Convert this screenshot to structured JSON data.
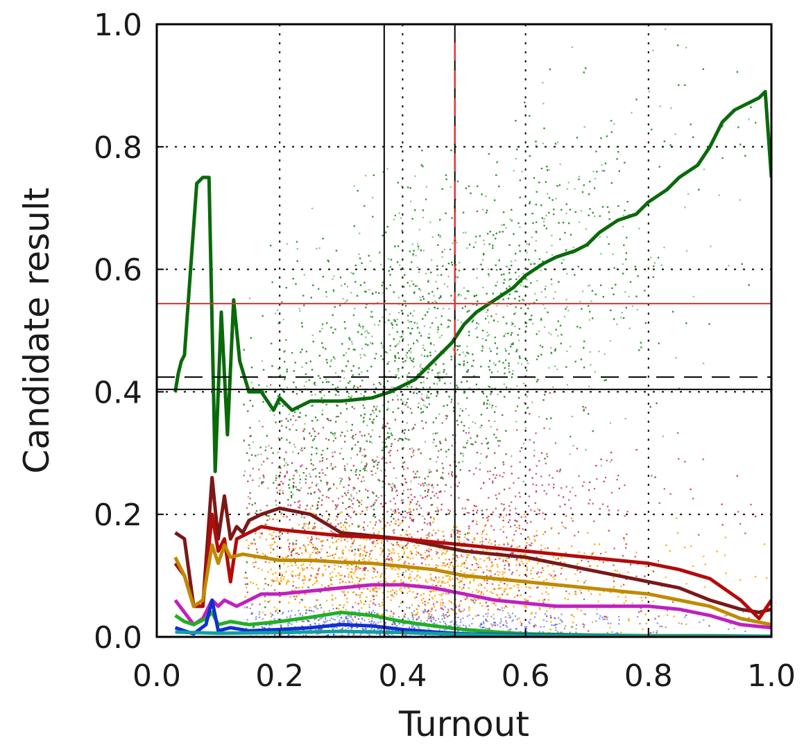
{
  "chart_data": {
    "type": "scatter",
    "xlabel": "Turnout",
    "ylabel": "Candidate result",
    "xlim": [
      0.0,
      1.0
    ],
    "ylim": [
      0.0,
      1.0
    ],
    "xticks": [
      "0.0",
      "0.2",
      "0.4",
      "0.6",
      "0.8",
      "1.0"
    ],
    "yticks": [
      "0.0",
      "0.2",
      "0.4",
      "0.6",
      "0.8",
      "1.0"
    ],
    "grid": true,
    "legend": "none",
    "reference_lines": [
      {
        "orientation": "vertical",
        "value": 0.37,
        "color": "#000000",
        "style": "solid"
      },
      {
        "orientation": "vertical",
        "value": 0.485,
        "color": "#000000",
        "style": "solid"
      },
      {
        "orientation": "vertical",
        "value": 0.485,
        "color": "#ff2020",
        "style": "dashed",
        "from": 0.46,
        "to": 0.97
      },
      {
        "orientation": "horizontal",
        "value": 0.544,
        "color": "#e03030",
        "style": "solid"
      },
      {
        "orientation": "horizontal",
        "value": 0.404,
        "color": "#000000",
        "style": "solid"
      },
      {
        "orientation": "horizontal",
        "value": 0.424,
        "color": "#000000",
        "style": "dashed"
      }
    ],
    "scatter_clouds": [
      {
        "color": "#2a8a2a",
        "points": 5200,
        "spread": "upper",
        "x_center": 0.42,
        "y_intercept": 0.32,
        "y_slope": 0.6,
        "y_noise": 0.14
      },
      {
        "color": "#c0304a",
        "points": 2600,
        "spread": "middle",
        "x_center": 0.42,
        "y_intercept": 0.2,
        "y_slope": -0.05,
        "y_noise": 0.09
      },
      {
        "color": "#ffa500",
        "points": 3200,
        "spread": "lower",
        "x_center": 0.4,
        "y_intercept": 0.12,
        "y_slope": -0.05,
        "y_noise": 0.045
      },
      {
        "color": "#2040e0",
        "points": 900,
        "spread": "bottom",
        "x_center": 0.35,
        "y_intercept": 0.02,
        "y_slope": -0.01,
        "y_noise": 0.015
      }
    ],
    "series": [
      {
        "color": "#0a6a0a",
        "x": [
          0.03,
          0.035,
          0.04,
          0.045,
          0.065,
          0.075,
          0.085,
          0.095,
          0.105,
          0.115,
          0.125,
          0.135,
          0.15,
          0.17,
          0.19,
          0.2,
          0.22,
          0.25,
          0.3,
          0.35,
          0.38,
          0.42,
          0.45,
          0.48,
          0.5,
          0.52,
          0.55,
          0.58,
          0.6,
          0.63,
          0.65,
          0.68,
          0.7,
          0.72,
          0.75,
          0.78,
          0.8,
          0.83,
          0.85,
          0.88,
          0.9,
          0.92,
          0.94,
          0.96,
          0.98,
          0.99,
          1.0
        ],
        "y": [
          0.4,
          0.43,
          0.45,
          0.46,
          0.74,
          0.75,
          0.75,
          0.27,
          0.53,
          0.33,
          0.55,
          0.45,
          0.4,
          0.4,
          0.37,
          0.39,
          0.37,
          0.385,
          0.385,
          0.39,
          0.4,
          0.42,
          0.45,
          0.48,
          0.51,
          0.53,
          0.55,
          0.57,
          0.59,
          0.61,
          0.62,
          0.63,
          0.64,
          0.66,
          0.68,
          0.69,
          0.71,
          0.73,
          0.75,
          0.77,
          0.8,
          0.84,
          0.86,
          0.87,
          0.88,
          0.89,
          0.75
        ]
      },
      {
        "color": "#7a1818",
        "x": [
          0.03,
          0.045,
          0.06,
          0.075,
          0.09,
          0.1,
          0.11,
          0.12,
          0.13,
          0.14,
          0.15,
          0.17,
          0.2,
          0.25,
          0.3,
          0.35,
          0.4,
          0.45,
          0.5,
          0.55,
          0.6,
          0.65,
          0.7,
          0.75,
          0.8,
          0.85,
          0.9,
          0.95,
          0.98,
          1.0
        ],
        "y": [
          0.17,
          0.16,
          0.05,
          0.05,
          0.26,
          0.16,
          0.23,
          0.16,
          0.18,
          0.17,
          0.19,
          0.2,
          0.21,
          0.2,
          0.17,
          0.165,
          0.16,
          0.15,
          0.14,
          0.135,
          0.13,
          0.12,
          0.11,
          0.1,
          0.09,
          0.08,
          0.06,
          0.045,
          0.04,
          0.045
        ]
      },
      {
        "color": "#b30a0a",
        "x": [
          0.03,
          0.045,
          0.06,
          0.075,
          0.09,
          0.1,
          0.11,
          0.12,
          0.13,
          0.15,
          0.17,
          0.2,
          0.25,
          0.3,
          0.35,
          0.4,
          0.45,
          0.5,
          0.55,
          0.6,
          0.65,
          0.7,
          0.75,
          0.8,
          0.85,
          0.9,
          0.95,
          0.98,
          1.0
        ],
        "y": [
          0.12,
          0.1,
          0.05,
          0.05,
          0.2,
          0.14,
          0.16,
          0.09,
          0.16,
          0.17,
          0.18,
          0.175,
          0.17,
          0.165,
          0.163,
          0.16,
          0.155,
          0.15,
          0.145,
          0.14,
          0.135,
          0.13,
          0.125,
          0.12,
          0.11,
          0.095,
          0.06,
          0.03,
          0.06
        ]
      },
      {
        "color": "#c08a00",
        "x": [
          0.03,
          0.045,
          0.06,
          0.075,
          0.09,
          0.1,
          0.11,
          0.12,
          0.14,
          0.17,
          0.2,
          0.25,
          0.3,
          0.35,
          0.4,
          0.45,
          0.5,
          0.55,
          0.6,
          0.65,
          0.7,
          0.75,
          0.8,
          0.85,
          0.9,
          0.95,
          1.0
        ],
        "y": [
          0.13,
          0.1,
          0.05,
          0.06,
          0.15,
          0.12,
          0.15,
          0.13,
          0.135,
          0.13,
          0.125,
          0.125,
          0.122,
          0.12,
          0.115,
          0.11,
          0.1,
          0.095,
          0.09,
          0.085,
          0.08,
          0.075,
          0.07,
          0.06,
          0.05,
          0.03,
          0.02
        ]
      },
      {
        "color": "#c020c0",
        "x": [
          0.03,
          0.045,
          0.06,
          0.075,
          0.09,
          0.1,
          0.11,
          0.13,
          0.15,
          0.17,
          0.2,
          0.25,
          0.3,
          0.35,
          0.4,
          0.45,
          0.5,
          0.55,
          0.6,
          0.65,
          0.7,
          0.75,
          0.8,
          0.85,
          0.9,
          0.95,
          1.0
        ],
        "y": [
          0.06,
          0.04,
          0.02,
          0.03,
          0.06,
          0.05,
          0.06,
          0.05,
          0.06,
          0.07,
          0.07,
          0.075,
          0.08,
          0.085,
          0.085,
          0.08,
          0.07,
          0.06,
          0.055,
          0.05,
          0.05,
          0.05,
          0.05,
          0.045,
          0.035,
          0.02,
          0.015
        ]
      },
      {
        "color": "#20b020",
        "x": [
          0.03,
          0.045,
          0.06,
          0.08,
          0.09,
          0.1,
          0.12,
          0.15,
          0.2,
          0.25,
          0.3,
          0.35,
          0.4,
          0.45,
          0.5,
          0.55,
          0.6,
          0.7,
          0.8,
          0.9,
          1.0
        ],
        "y": [
          0.035,
          0.025,
          0.02,
          0.03,
          0.04,
          0.02,
          0.025,
          0.02,
          0.025,
          0.032,
          0.04,
          0.035,
          0.025,
          0.018,
          0.012,
          0.008,
          0.005,
          0.003,
          0.002,
          0.002,
          0.001
        ]
      },
      {
        "color": "#1030d0",
        "x": [
          0.03,
          0.045,
          0.06,
          0.08,
          0.09,
          0.1,
          0.12,
          0.15,
          0.2,
          0.25,
          0.3,
          0.35,
          0.4,
          0.45,
          0.5,
          0.6,
          0.7,
          0.8,
          0.9,
          1.0
        ],
        "y": [
          0.015,
          0.01,
          0.005,
          0.02,
          0.06,
          0.01,
          0.015,
          0.01,
          0.012,
          0.015,
          0.02,
          0.018,
          0.012,
          0.008,
          0.005,
          0.003,
          0.002,
          0.001,
          0.001,
          0.001
        ]
      },
      {
        "color": "#10a0a0",
        "x": [
          0.03,
          0.1,
          0.2,
          0.3,
          0.4,
          0.5,
          0.6,
          0.8,
          1.0
        ],
        "y": [
          0.008,
          0.006,
          0.007,
          0.009,
          0.007,
          0.004,
          0.002,
          0.001,
          0.001
        ]
      }
    ]
  }
}
